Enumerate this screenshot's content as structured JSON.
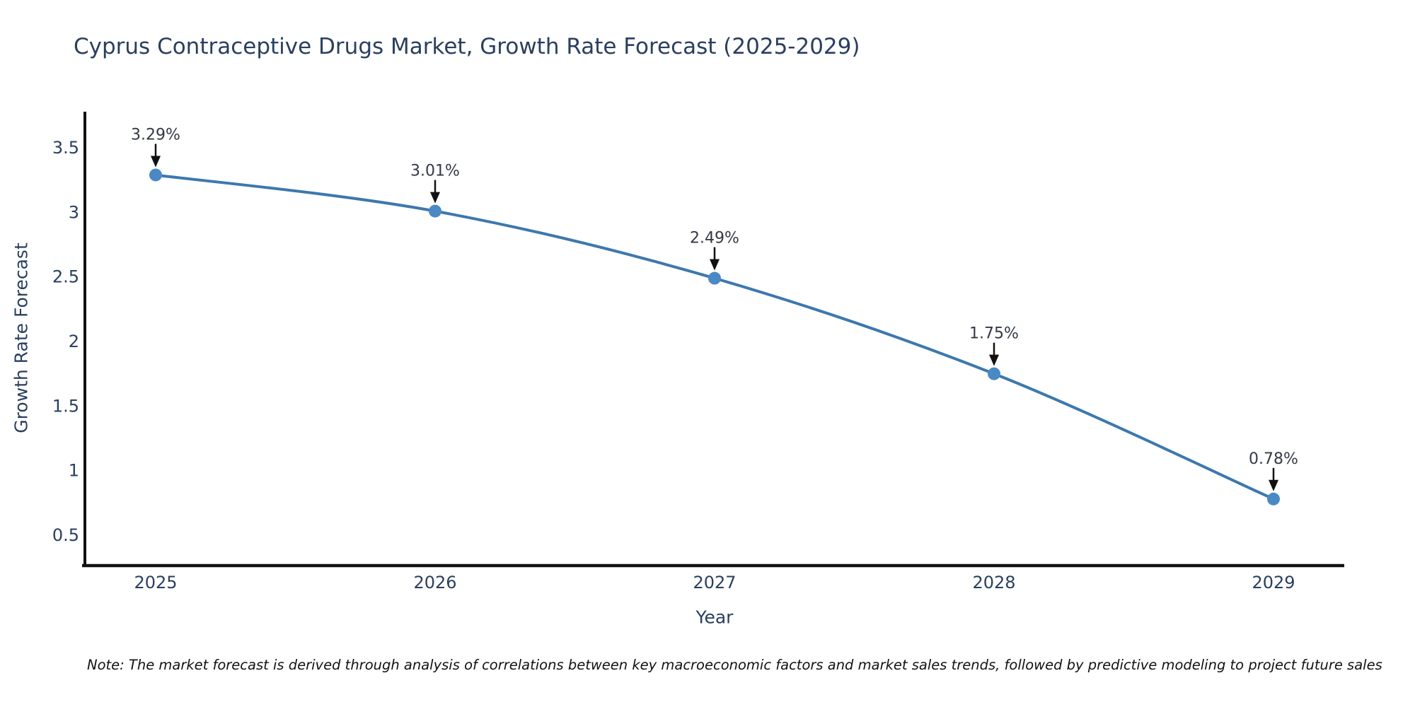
{
  "title": "Cyprus Contraceptive Drugs Market, Growth Rate Forecast (2025-2029)",
  "note": "Note: The market forecast is derived through analysis of correlations between key macroeconomic factors and market sales trends, followed by predictive modeling to project future sales",
  "chart_data": {
    "type": "line",
    "title": "Cyprus Contraceptive Drugs Market, Growth Rate Forecast (2025-2029)",
    "xlabel": "Year",
    "ylabel": "Growth Rate Forecast",
    "categories": [
      "2025",
      "2026",
      "2027",
      "2028",
      "2029"
    ],
    "series": [
      {
        "name": "Growth Rate Forecast",
        "values": [
          3.29,
          3.01,
          2.49,
          1.75,
          0.78
        ]
      }
    ],
    "point_labels": [
      "3.29%",
      "3.01%",
      "2.49%",
      "1.75%",
      "0.78%"
    ],
    "yticks": [
      0.5,
      1,
      1.5,
      2,
      2.5,
      3,
      3.5
    ],
    "ylim": [
      0.264,
      3.78
    ],
    "grid": false,
    "legend_position": "none",
    "line_shape": "spline",
    "annotations_have_arrows": true,
    "colors": {
      "line": "#3d78ad",
      "marker": "#4a89c4",
      "axis": "#111111",
      "tick_label": "#2a3f5f",
      "annotation_text": "#333945",
      "arrow": "#111111",
      "background": "#ffffff"
    }
  }
}
